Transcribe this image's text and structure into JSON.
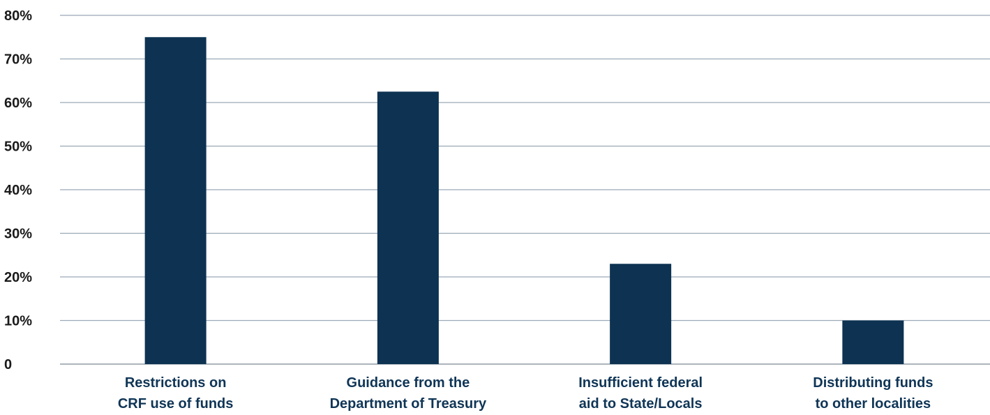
{
  "chart_data": {
    "type": "bar",
    "title": "",
    "xlabel": "",
    "ylabel": "",
    "categories": [
      [
        "Restrictions on",
        "CRF use of funds"
      ],
      [
        "Guidance from the",
        "Department of Treasury"
      ],
      [
        "Insufficient federal",
        "aid to State/Locals"
      ],
      [
        "Distributing funds",
        "to other localities"
      ]
    ],
    "values": [
      75,
      62.5,
      23,
      10
    ],
    "ylim": [
      0,
      80
    ],
    "yticks": [
      0,
      10,
      20,
      30,
      40,
      50,
      60,
      70,
      80
    ],
    "ytick_labels": [
      "0",
      "10%",
      "20%",
      "30%",
      "40%",
      "50%",
      "60%",
      "70%",
      "80%"
    ],
    "grid": true,
    "bar_color": "#0d3252",
    "legend": "none"
  }
}
